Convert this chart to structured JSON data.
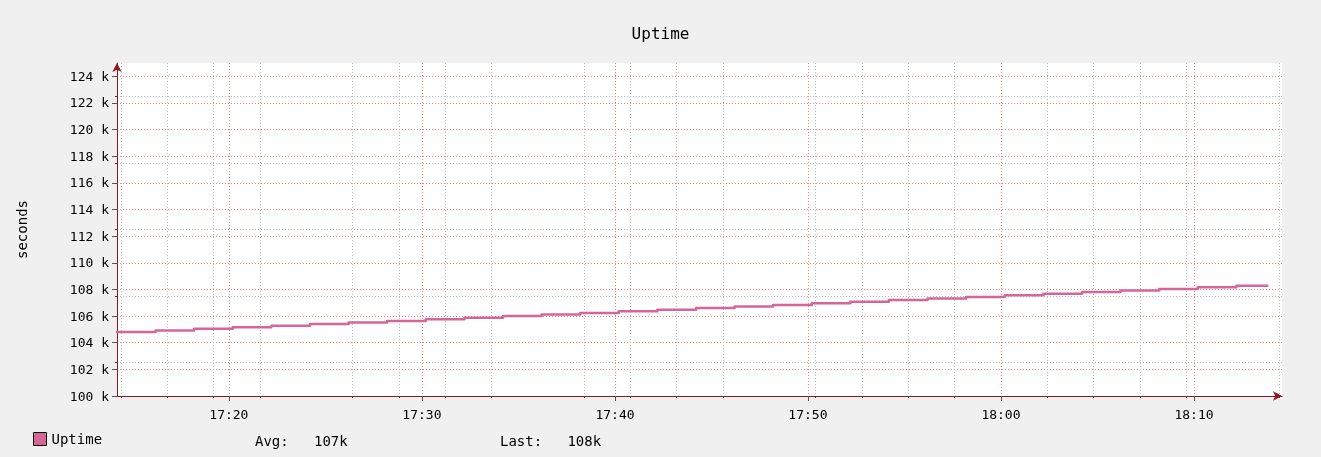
{
  "chart_data": {
    "type": "step",
    "title": "Uptime",
    "ylabel": "seconds",
    "x": [
      17.2367,
      17.27,
      17.3033,
      17.3367,
      17.37,
      17.4033,
      17.4367,
      17.47,
      17.5033,
      17.5367,
      17.57,
      17.6033,
      17.6367,
      17.67,
      17.7033,
      17.7367,
      17.77,
      17.8033,
      17.8367,
      17.87,
      17.9033,
      17.9367,
      17.97,
      18.0033,
      18.0367,
      18.07,
      18.1033,
      18.1367,
      18.17,
      18.2033,
      18.23
    ],
    "series": [
      {
        "name": "Uptime",
        "color": "#d6669a",
        "values": [
          104800,
          104920,
          105040,
          105160,
          105280,
          105400,
          105520,
          105640,
          105760,
          105880,
          106000,
          106120,
          106240,
          106360,
          106480,
          106600,
          106720,
          106840,
          106960,
          107080,
          107200,
          107320,
          107440,
          107560,
          107680,
          107800,
          107920,
          108040,
          108160,
          108280,
          108280
        ]
      }
    ],
    "xlim": [
      17.2367,
      18.2427
    ],
    "xticks": [
      {
        "value": 17.3333,
        "label": "17:20"
      },
      {
        "value": 17.5,
        "label": "17:30"
      },
      {
        "value": 17.6667,
        "label": "17:40"
      },
      {
        "value": 17.8333,
        "label": "17:50"
      },
      {
        "value": 18,
        "label": "18:00"
      },
      {
        "value": 18.1667,
        "label": "18:10"
      }
    ],
    "ylim": [
      100000,
      125000
    ],
    "yticks": [
      {
        "value": 100000,
        "label": "100 k"
      },
      {
        "value": 102000,
        "label": "102 k"
      },
      {
        "value": 104000,
        "label": "104 k"
      },
      {
        "value": 106000,
        "label": "106 k"
      },
      {
        "value": 108000,
        "label": "108 k"
      },
      {
        "value": 110000,
        "label": "110 k"
      },
      {
        "value": 112000,
        "label": "112 k"
      },
      {
        "value": 114000,
        "label": "114 k"
      },
      {
        "value": 116000,
        "label": "116 k"
      },
      {
        "value": 118000,
        "label": "118 k"
      },
      {
        "value": 120000,
        "label": "120 k"
      },
      {
        "value": 122000,
        "label": "122 k"
      },
      {
        "value": 124000,
        "label": "124 k"
      }
    ],
    "annotations": [
      "Avg:   107k",
      "Last:   108k"
    ],
    "grid": true,
    "legend": "bottom left",
    "marker": "none",
    "line_style": "solid"
  }
}
